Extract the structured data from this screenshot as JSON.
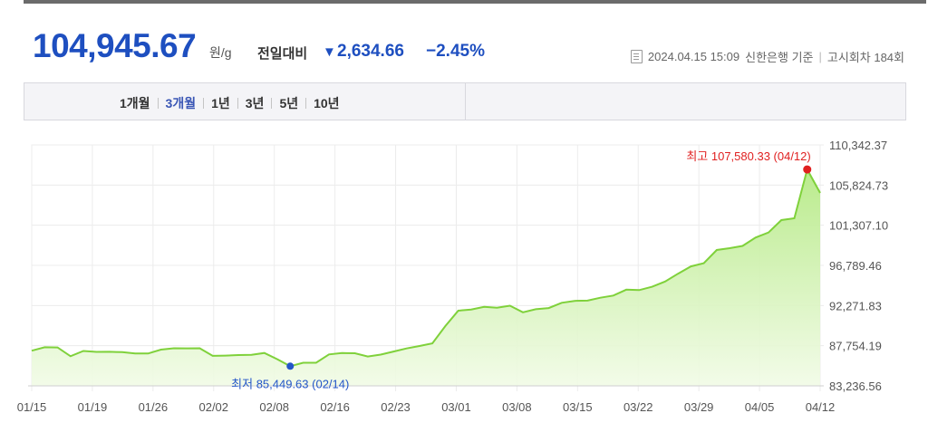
{
  "header": {
    "price": "104,945.67",
    "unit": "원/g",
    "compare_label": "전일대비",
    "change_arrow": "▼",
    "change_value": "2,634.66",
    "change_pct": "−2.45%",
    "timestamp": "2024.04.15 15:09",
    "source": "신한은행 기준",
    "notice": "고시회차 184회",
    "accent_color": "#1e4fc0",
    "doc_icon": "document-icon"
  },
  "tabs": [
    {
      "label": "1개월",
      "active": false
    },
    {
      "label": "3개월",
      "active": true
    },
    {
      "label": "1년",
      "active": false
    },
    {
      "label": "3년",
      "active": false
    },
    {
      "label": "5년",
      "active": false
    },
    {
      "label": "10년",
      "active": false
    }
  ],
  "chart_data": {
    "type": "area",
    "title": "",
    "xlabel": "",
    "ylabel": "",
    "ylim": [
      83236.56,
      110342.37
    ],
    "y_ticks": [
      "110,342.37",
      "105,824.73",
      "101,307.10",
      "96,789.46",
      "92,271.83",
      "87,754.19",
      "83,236.56"
    ],
    "x_ticks": [
      "01/15",
      "01/19",
      "01/26",
      "02/02",
      "02/08",
      "02/16",
      "02/23",
      "03/01",
      "03/08",
      "03/15",
      "03/22",
      "03/29",
      "04/05",
      "04/12"
    ],
    "grid": true,
    "line_color": "#7fd13b",
    "fill_color": "#c9f0a4",
    "values": [
      87190,
      87580,
      87560,
      86570,
      87160,
      87060,
      87070,
      87030,
      86880,
      86870,
      87310,
      87470,
      87460,
      87470,
      86610,
      86640,
      86700,
      86730,
      86940,
      86230,
      85449.63,
      85840,
      85830,
      86770,
      86930,
      86900,
      86540,
      86750,
      87100,
      87450,
      87720,
      88020,
      89960,
      91690,
      91830,
      92120,
      92030,
      92250,
      91510,
      91860,
      91990,
      92580,
      92800,
      92830,
      93150,
      93400,
      94060,
      94010,
      94380,
      94980,
      95850,
      96680,
      97030,
      98520,
      98730,
      98980,
      99920,
      100490,
      101880,
      102090,
      107580.33,
      104945.67
    ],
    "annotations": {
      "max": {
        "label": "최고 107,580.33 (04/12)",
        "index": 60,
        "value": 107580.33,
        "color": "#e02020"
      },
      "min": {
        "label": "최저 85,449.63 (02/14)",
        "index": 20,
        "value": 85449.63,
        "color": "#2456c8"
      }
    }
  }
}
